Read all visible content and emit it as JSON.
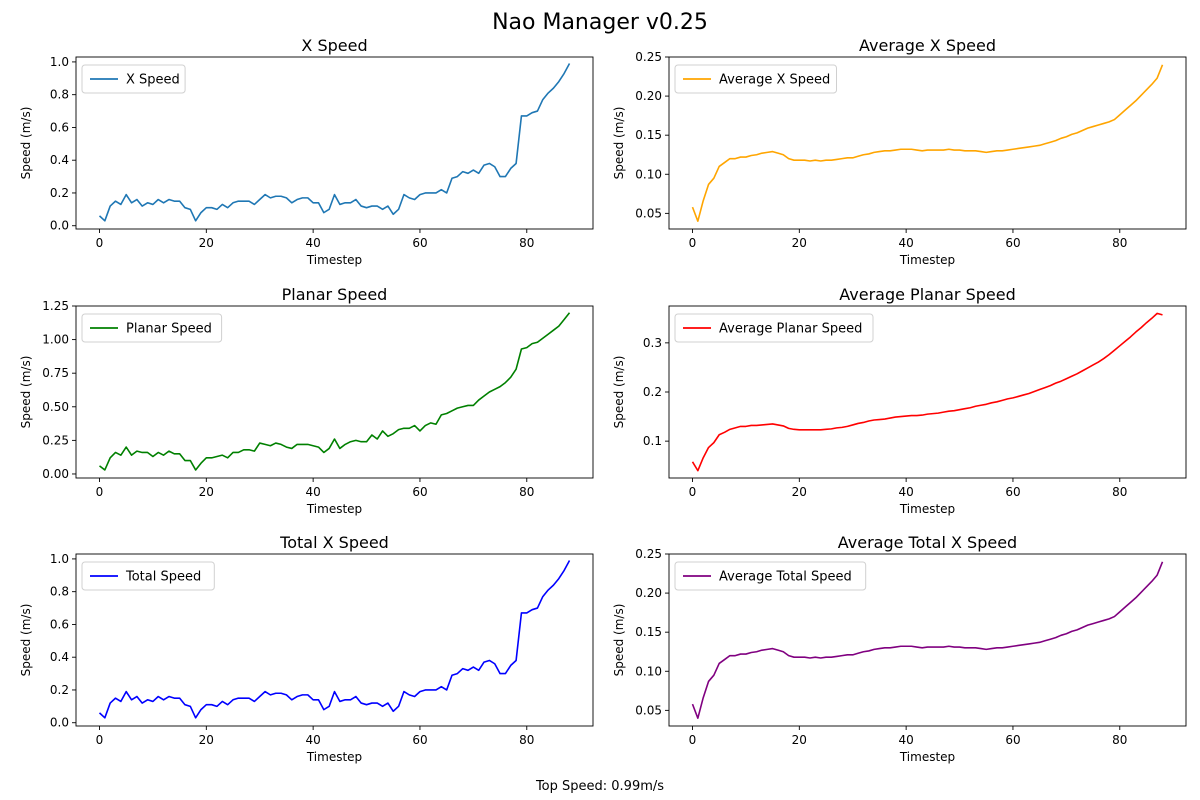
{
  "window": {
    "title": "Nao Manager v0.25"
  },
  "footer": {
    "text": "Top Speed: 0.99m/s"
  },
  "chart_data": [
    {
      "type": "line",
      "title": "X Speed",
      "xlabel": "Timestep",
      "ylabel": "Speed (m/s)",
      "xlim": [
        -4.4,
        92.4
      ],
      "ylim": [
        -0.02,
        1.03
      ],
      "xticks": [
        0,
        20,
        40,
        60,
        80
      ],
      "yticks": [
        0.0,
        0.2,
        0.4,
        0.6,
        0.8,
        1.0
      ],
      "ytick_decimals": 1,
      "legend_position": "upper left",
      "series": [
        {
          "name": "X Speed",
          "color": "#1f77b4",
          "x_start": 0,
          "values": [
            0.06,
            0.03,
            0.12,
            0.15,
            0.13,
            0.19,
            0.14,
            0.16,
            0.12,
            0.14,
            0.13,
            0.16,
            0.14,
            0.16,
            0.15,
            0.15,
            0.11,
            0.1,
            0.03,
            0.08,
            0.11,
            0.11,
            0.1,
            0.13,
            0.11,
            0.14,
            0.15,
            0.15,
            0.15,
            0.13,
            0.16,
            0.19,
            0.17,
            0.18,
            0.18,
            0.17,
            0.14,
            0.16,
            0.17,
            0.17,
            0.14,
            0.14,
            0.08,
            0.1,
            0.19,
            0.13,
            0.14,
            0.14,
            0.16,
            0.12,
            0.11,
            0.12,
            0.12,
            0.1,
            0.12,
            0.07,
            0.1,
            0.19,
            0.17,
            0.16,
            0.19,
            0.2,
            0.2,
            0.2,
            0.22,
            0.2,
            0.29,
            0.3,
            0.33,
            0.32,
            0.34,
            0.32,
            0.37,
            0.38,
            0.36,
            0.3,
            0.3,
            0.35,
            0.38,
            0.67,
            0.67,
            0.69,
            0.7,
            0.77,
            0.81,
            0.84,
            0.88,
            0.93,
            0.99
          ]
        }
      ]
    },
    {
      "type": "line",
      "title": "Average X Speed",
      "xlabel": "Timestep",
      "ylabel": "Speed (m/s)",
      "xlim": [
        -4.4,
        92.4
      ],
      "ylim": [
        0.03,
        0.25
      ],
      "xticks": [
        0,
        20,
        40,
        60,
        80
      ],
      "yticks": [
        0.05,
        0.1,
        0.15,
        0.2,
        0.25
      ],
      "ytick_decimals": 2,
      "legend_position": "upper left",
      "series": [
        {
          "name": "Average X Speed",
          "color": "#ffa500",
          "x_start": 0,
          "values": [
            0.058,
            0.04,
            0.066,
            0.087,
            0.095,
            0.11,
            0.115,
            0.12,
            0.12,
            0.122,
            0.122,
            0.124,
            0.125,
            0.127,
            0.128,
            0.129,
            0.127,
            0.125,
            0.12,
            0.118,
            0.118,
            0.118,
            0.117,
            0.118,
            0.117,
            0.118,
            0.118,
            0.119,
            0.12,
            0.121,
            0.121,
            0.123,
            0.125,
            0.126,
            0.128,
            0.129,
            0.13,
            0.13,
            0.131,
            0.132,
            0.132,
            0.132,
            0.131,
            0.13,
            0.131,
            0.131,
            0.131,
            0.131,
            0.132,
            0.131,
            0.131,
            0.13,
            0.13,
            0.13,
            0.129,
            0.128,
            0.129,
            0.13,
            0.13,
            0.131,
            0.132,
            0.133,
            0.134,
            0.135,
            0.136,
            0.137,
            0.139,
            0.141,
            0.143,
            0.146,
            0.148,
            0.151,
            0.153,
            0.156,
            0.159,
            0.161,
            0.163,
            0.165,
            0.167,
            0.17,
            0.176,
            0.182,
            0.188,
            0.194,
            0.201,
            0.208,
            0.215,
            0.223,
            0.24
          ]
        }
      ]
    },
    {
      "type": "line",
      "title": "Planar Speed",
      "xlabel": "Timestep",
      "ylabel": "Speed (m/s)",
      "xlim": [
        -4.4,
        92.4
      ],
      "ylim": [
        -0.03,
        1.25
      ],
      "xticks": [
        0,
        20,
        40,
        60,
        80
      ],
      "yticks": [
        0.0,
        0.25,
        0.5,
        0.75,
        1.0,
        1.25
      ],
      "ytick_decimals": 2,
      "legend_position": "upper left",
      "series": [
        {
          "name": "Planar Speed",
          "color": "#008000",
          "x_start": 0,
          "values": [
            0.06,
            0.03,
            0.12,
            0.16,
            0.14,
            0.2,
            0.14,
            0.17,
            0.16,
            0.16,
            0.13,
            0.16,
            0.14,
            0.17,
            0.15,
            0.15,
            0.1,
            0.1,
            0.03,
            0.08,
            0.12,
            0.12,
            0.13,
            0.14,
            0.12,
            0.16,
            0.16,
            0.18,
            0.18,
            0.17,
            0.23,
            0.22,
            0.21,
            0.23,
            0.22,
            0.2,
            0.19,
            0.22,
            0.22,
            0.22,
            0.21,
            0.2,
            0.16,
            0.19,
            0.26,
            0.19,
            0.22,
            0.24,
            0.25,
            0.24,
            0.24,
            0.29,
            0.26,
            0.32,
            0.28,
            0.3,
            0.33,
            0.34,
            0.34,
            0.36,
            0.32,
            0.36,
            0.38,
            0.37,
            0.44,
            0.45,
            0.47,
            0.49,
            0.5,
            0.51,
            0.51,
            0.55,
            0.58,
            0.61,
            0.63,
            0.65,
            0.68,
            0.72,
            0.78,
            0.93,
            0.94,
            0.97,
            0.98,
            1.01,
            1.04,
            1.07,
            1.1,
            1.15,
            1.2
          ]
        }
      ]
    },
    {
      "type": "line",
      "title": "Average Planar Speed",
      "xlabel": "Timestep",
      "ylabel": "Speed (m/s)",
      "xlim": [
        -4.4,
        92.4
      ],
      "ylim": [
        0.025,
        0.375
      ],
      "xticks": [
        0,
        20,
        40,
        60,
        80
      ],
      "yticks": [
        0.1,
        0.2,
        0.3
      ],
      "ytick_decimals": 1,
      "legend_position": "upper left",
      "series": [
        {
          "name": "Average Planar Speed",
          "color": "#ff0000",
          "x_start": 0,
          "values": [
            0.058,
            0.04,
            0.066,
            0.087,
            0.097,
            0.113,
            0.118,
            0.124,
            0.127,
            0.13,
            0.13,
            0.132,
            0.132,
            0.133,
            0.134,
            0.135,
            0.133,
            0.131,
            0.126,
            0.124,
            0.123,
            0.123,
            0.123,
            0.123,
            0.123,
            0.124,
            0.125,
            0.127,
            0.128,
            0.13,
            0.133,
            0.136,
            0.138,
            0.141,
            0.143,
            0.144,
            0.145,
            0.147,
            0.149,
            0.15,
            0.151,
            0.152,
            0.152,
            0.153,
            0.155,
            0.156,
            0.157,
            0.159,
            0.161,
            0.162,
            0.164,
            0.166,
            0.168,
            0.171,
            0.173,
            0.175,
            0.178,
            0.18,
            0.183,
            0.186,
            0.188,
            0.191,
            0.194,
            0.197,
            0.201,
            0.205,
            0.209,
            0.213,
            0.218,
            0.222,
            0.227,
            0.232,
            0.237,
            0.243,
            0.249,
            0.255,
            0.261,
            0.268,
            0.276,
            0.285,
            0.294,
            0.303,
            0.312,
            0.322,
            0.331,
            0.341,
            0.35,
            0.36,
            0.357
          ]
        }
      ]
    },
    {
      "type": "line",
      "title": "Total X Speed",
      "xlabel": "Timestep",
      "ylabel": "Speed (m/s)",
      "xlim": [
        -4.4,
        92.4
      ],
      "ylim": [
        -0.02,
        1.03
      ],
      "xticks": [
        0,
        20,
        40,
        60,
        80
      ],
      "yticks": [
        0.0,
        0.2,
        0.4,
        0.6,
        0.8,
        1.0
      ],
      "ytick_decimals": 1,
      "legend_position": "upper left",
      "series": [
        {
          "name": "Total Speed",
          "color": "#0000ff",
          "x_start": 0,
          "values": [
            0.06,
            0.03,
            0.12,
            0.15,
            0.13,
            0.19,
            0.14,
            0.16,
            0.12,
            0.14,
            0.13,
            0.16,
            0.14,
            0.16,
            0.15,
            0.15,
            0.11,
            0.1,
            0.03,
            0.08,
            0.11,
            0.11,
            0.1,
            0.13,
            0.11,
            0.14,
            0.15,
            0.15,
            0.15,
            0.13,
            0.16,
            0.19,
            0.17,
            0.18,
            0.18,
            0.17,
            0.14,
            0.16,
            0.17,
            0.17,
            0.14,
            0.14,
            0.08,
            0.1,
            0.19,
            0.13,
            0.14,
            0.14,
            0.16,
            0.12,
            0.11,
            0.12,
            0.12,
            0.1,
            0.12,
            0.07,
            0.1,
            0.19,
            0.17,
            0.16,
            0.19,
            0.2,
            0.2,
            0.2,
            0.22,
            0.2,
            0.29,
            0.3,
            0.33,
            0.32,
            0.34,
            0.32,
            0.37,
            0.38,
            0.36,
            0.3,
            0.3,
            0.35,
            0.38,
            0.67,
            0.67,
            0.69,
            0.7,
            0.77,
            0.81,
            0.84,
            0.88,
            0.93,
            0.99
          ]
        }
      ]
    },
    {
      "type": "line",
      "title": "Average Total X Speed",
      "xlabel": "Timestep",
      "ylabel": "Speed (m/s)",
      "xlim": [
        -4.4,
        92.4
      ],
      "ylim": [
        0.03,
        0.25
      ],
      "xticks": [
        0,
        20,
        40,
        60,
        80
      ],
      "yticks": [
        0.05,
        0.1,
        0.15,
        0.2,
        0.25
      ],
      "ytick_decimals": 2,
      "legend_position": "upper left",
      "series": [
        {
          "name": "Average Total Speed",
          "color": "#800080",
          "x_start": 0,
          "values": [
            0.058,
            0.04,
            0.066,
            0.087,
            0.095,
            0.11,
            0.115,
            0.12,
            0.12,
            0.122,
            0.122,
            0.124,
            0.125,
            0.127,
            0.128,
            0.129,
            0.127,
            0.125,
            0.12,
            0.118,
            0.118,
            0.118,
            0.117,
            0.118,
            0.117,
            0.118,
            0.118,
            0.119,
            0.12,
            0.121,
            0.121,
            0.123,
            0.125,
            0.126,
            0.128,
            0.129,
            0.13,
            0.13,
            0.131,
            0.132,
            0.132,
            0.132,
            0.131,
            0.13,
            0.131,
            0.131,
            0.131,
            0.131,
            0.132,
            0.131,
            0.131,
            0.13,
            0.13,
            0.13,
            0.129,
            0.128,
            0.129,
            0.13,
            0.13,
            0.131,
            0.132,
            0.133,
            0.134,
            0.135,
            0.136,
            0.137,
            0.139,
            0.141,
            0.143,
            0.146,
            0.148,
            0.151,
            0.153,
            0.156,
            0.159,
            0.161,
            0.163,
            0.165,
            0.167,
            0.17,
            0.176,
            0.182,
            0.188,
            0.194,
            0.201,
            0.208,
            0.215,
            0.223,
            0.24
          ]
        }
      ]
    }
  ]
}
